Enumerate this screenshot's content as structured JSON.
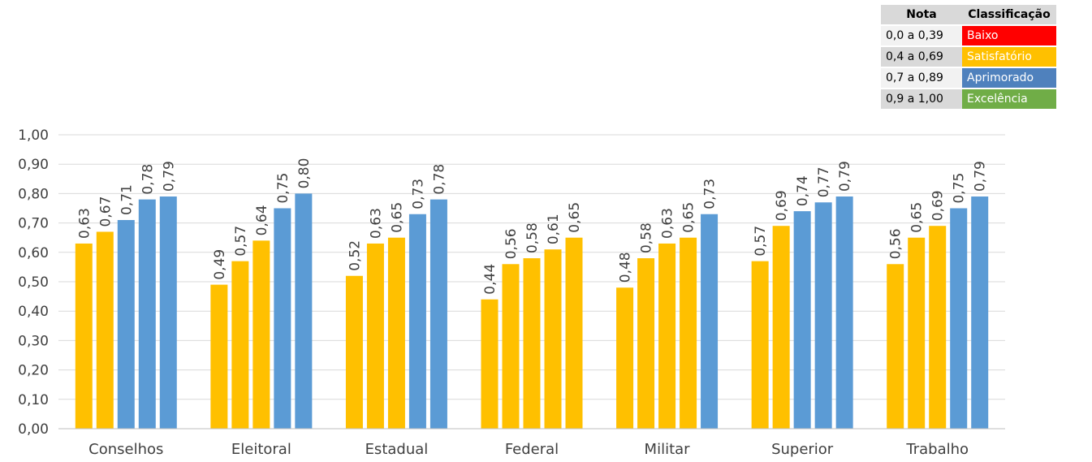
{
  "chart_data": {
    "type": "bar",
    "categories": [
      "Conselhos",
      "Eleitoral",
      "Estadual",
      "Federal",
      "Militar",
      "Superior",
      "Trabalho"
    ],
    "series": [
      {
        "values": [
          0.63,
          0.49,
          0.52,
          0.44,
          0.48,
          0.57,
          0.56
        ]
      },
      {
        "values": [
          0.67,
          0.57,
          0.63,
          0.56,
          0.58,
          0.69,
          0.65
        ]
      },
      {
        "values": [
          0.71,
          0.64,
          0.65,
          0.58,
          0.63,
          0.74,
          0.69
        ]
      },
      {
        "values": [
          0.78,
          0.75,
          0.73,
          0.61,
          0.65,
          0.77,
          0.75
        ]
      },
      {
        "values": [
          0.79,
          0.8,
          0.78,
          0.65,
          0.73,
          0.79,
          0.79
        ]
      }
    ],
    "value_labels": [
      [
        "0,63",
        "0,49",
        "0,52",
        "0,44",
        "0,48",
        "0,57",
        "0,56"
      ],
      [
        "0,67",
        "0,57",
        "0,63",
        "0,56",
        "0,58",
        "0,69",
        "0,65"
      ],
      [
        "0,71",
        "0,64",
        "0,65",
        "0,58",
        "0,63",
        "0,74",
        "0,69"
      ],
      [
        "0,78",
        "0,75",
        "0,73",
        "0,61",
        "0,65",
        "0,77",
        "0,75"
      ],
      [
        "0,79",
        "0,80",
        "0,78",
        "0,65",
        "0,73",
        "0,79",
        "0,79"
      ]
    ],
    "ylim": [
      0,
      1.0
    ],
    "yticks": [
      0,
      0.1,
      0.2,
      0.3,
      0.4,
      0.5,
      0.6,
      0.7,
      0.8,
      0.9,
      1.0
    ],
    "ytick_labels": [
      "0,00",
      "0,10",
      "0,20",
      "0,30",
      "0,40",
      "0,50",
      "0,60",
      "0,70",
      "0,80",
      "0,90",
      "1,00"
    ],
    "grid": true,
    "title": "",
    "xlabel": "",
    "ylabel": "",
    "bar_color_rule": "color by classification band of value",
    "colors": {
      "satisfatorio": "#FFC000",
      "aprimorado": "#5B9BD5",
      "grid": "#d9d9d9",
      "axis": "#bfbfbf"
    }
  },
  "legend_table": {
    "header_nota": "Nota",
    "header_classificacao": "Classificação",
    "rows": [
      {
        "range": "0,0 a 0,39",
        "label": "Baixo",
        "color": "#FF0000",
        "text_color": "#ffffff"
      },
      {
        "range": "0,4 a 0,69",
        "label": "Satisfatório",
        "color": "#FFC000",
        "text_color": "#ffffff"
      },
      {
        "range": "0,7 a 0,89",
        "label": "Aprimorado",
        "color": "#4F81BD",
        "text_color": "#ffffff"
      },
      {
        "range": "0,9 a 1,00",
        "label": "Excelência",
        "color": "#70AD47",
        "text_color": "#ffffff"
      }
    ]
  }
}
